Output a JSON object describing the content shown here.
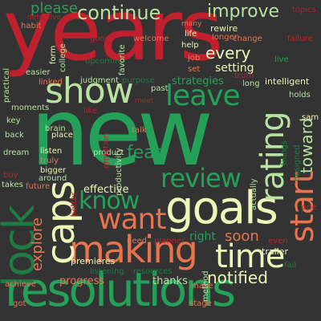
{
  "background": "#333333",
  "palette": {
    "red": "#c0202e",
    "green": "#25a059",
    "dark_green": "#1f7a43",
    "light_green": "#b7e2a0",
    "pale_yellow": "#eef6b8",
    "salmon": "#e8734f",
    "pink": "#f2a089"
  },
  "words": [
    {
      "text": "years",
      "color": "#c0202e",
      "orient": "h"
    },
    {
      "text": "new",
      "color": "#25a059",
      "orient": "h"
    },
    {
      "text": "resolutions",
      "color": "#25a059",
      "orient": "h"
    },
    {
      "text": "goals",
      "color": "#eef6b8",
      "orient": "h"
    },
    {
      "text": "making",
      "color": "#e8734f",
      "orient": "h"
    },
    {
      "text": "lock",
      "color": "#1f7a43",
      "orient": "v"
    },
    {
      "text": "caps",
      "color": "#eef6b8",
      "orient": "v"
    },
    {
      "text": "show",
      "color": "#b7e2a0",
      "orient": "h"
    },
    {
      "text": "leave",
      "color": "#25a059",
      "orient": "h"
    },
    {
      "text": "time",
      "color": "#eef6b8",
      "orient": "h"
    },
    {
      "text": "rating",
      "color": "#b7e2a0",
      "orient": "v"
    },
    {
      "text": "start",
      "color": "#e8734f",
      "orient": "v"
    },
    {
      "text": "want",
      "color": "#e8734f",
      "orient": "h"
    },
    {
      "text": "know",
      "color": "#25a059",
      "orient": "h"
    },
    {
      "text": "review",
      "color": "#25a059",
      "orient": "h"
    },
    {
      "text": "continue",
      "color": "#b7e2a0",
      "orient": "h"
    },
    {
      "text": "improve",
      "color": "#b7e2a0",
      "orient": "h"
    },
    {
      "text": "please",
      "color": "#25a059",
      "orient": "h"
    },
    {
      "text": "every",
      "color": "#eef6b8",
      "orient": "h"
    },
    {
      "text": "notified",
      "color": "#eef6b8",
      "orient": "h"
    },
    {
      "text": "fear",
      "color": "#25a059",
      "orient": "h"
    },
    {
      "text": "toward",
      "color": "#b7e2a0",
      "orient": "v"
    },
    {
      "text": "explore",
      "color": "#e8734f",
      "orient": "v"
    },
    {
      "text": "soon",
      "color": "#e8734f",
      "orient": "h"
    },
    {
      "text": "strategies",
      "color": "#25a059",
      "orient": "h"
    },
    {
      "text": "setting",
      "color": "#eef6b8",
      "orient": "h"
    },
    {
      "text": "effective",
      "color": "#eef6b8",
      "orient": "h"
    },
    {
      "text": "progress",
      "color": "#e8734f",
      "orient": "h"
    },
    {
      "text": "thanks",
      "color": "#b7e2a0",
      "orient": "h"
    },
    {
      "text": "right",
      "color": "#25a059",
      "orient": "h"
    },
    {
      "text": "premieres",
      "color": "#eef6b8",
      "orient": "h"
    },
    {
      "text": "intelligent",
      "color": "#eef6b8",
      "orient": "h"
    },
    {
      "text": "holds",
      "color": "#b7e2a0",
      "orient": "h"
    },
    {
      "text": "rewire",
      "color": "#eef6b8",
      "orient": "h"
    },
    {
      "text": "longer",
      "color": "#e8734f",
      "orient": "h"
    },
    {
      "text": "topics",
      "color": "#c0202e",
      "orient": "h"
    },
    {
      "text": "change",
      "color": "#e8734f",
      "orient": "h"
    },
    {
      "text": "failure",
      "color": "#c0202e",
      "orient": "h"
    },
    {
      "text": "live",
      "color": "#25a059",
      "orient": "h"
    },
    {
      "text": "welcome",
      "color": "#e8734f",
      "orient": "h"
    },
    {
      "text": "good",
      "color": "#c0202e",
      "orient": "h"
    },
    {
      "text": "upcoming",
      "color": "#1f7a43",
      "orient": "h"
    },
    {
      "text": "judgment",
      "color": "#b7e2a0",
      "orient": "h"
    },
    {
      "text": "purpose",
      "color": "#1f7a43",
      "orient": "h"
    },
    {
      "text": "past",
      "color": "#b7e2a0",
      "orient": "h"
    },
    {
      "text": "life",
      "color": "#eef6b8",
      "orient": "h"
    },
    {
      "text": "help",
      "color": "#eef6b8",
      "orient": "h"
    },
    {
      "text": "job",
      "color": "#e8734f",
      "orient": "h"
    },
    {
      "text": "set",
      "color": "#e8734f",
      "orient": "h"
    },
    {
      "text": "many",
      "color": "#e8734f",
      "orient": "h"
    },
    {
      "text": "truth",
      "color": "#c0202e",
      "orient": "h"
    },
    {
      "text": "long",
      "color": "#b7e2a0",
      "orient": "h"
    },
    {
      "text": "habit",
      "color": "#e8734f",
      "orient": "h"
    },
    {
      "text": "easier",
      "color": "#b7e2a0",
      "orient": "h"
    },
    {
      "text": "linked",
      "color": "#e8734f",
      "orient": "h"
    },
    {
      "text": "moments",
      "color": "#b7e2a0",
      "orient": "h"
    },
    {
      "text": "key",
      "color": "#b7e2a0",
      "orient": "h"
    },
    {
      "text": "back",
      "color": "#b7e2a0",
      "orient": "h"
    },
    {
      "text": "dream",
      "color": "#b7e2a0",
      "orient": "h"
    },
    {
      "text": "buy",
      "color": "#c0202e",
      "orient": "h"
    },
    {
      "text": "takes",
      "color": "#b7e2a0",
      "orient": "h"
    },
    {
      "text": "brain",
      "color": "#b7e2a0",
      "orient": "h"
    },
    {
      "text": "place",
      "color": "#eef6b8",
      "orient": "h"
    },
    {
      "text": "listen",
      "color": "#eef6b8",
      "orient": "h"
    },
    {
      "text": "bigger",
      "color": "#eef6b8",
      "orient": "h"
    },
    {
      "text": "around",
      "color": "#b7e2a0",
      "orient": "h"
    },
    {
      "text": "future",
      "color": "#e8734f",
      "orient": "h"
    },
    {
      "text": "truly",
      "color": "#e8734f",
      "orient": "h"
    },
    {
      "text": "product",
      "color": "#b7e2a0",
      "orient": "h"
    },
    {
      "text": "talk",
      "color": "#e8734f",
      "orient": "h"
    },
    {
      "text": "like",
      "color": "#c0202e",
      "orient": "h"
    },
    {
      "text": "need",
      "color": "#e8734f",
      "orient": "h"
    },
    {
      "text": "planner",
      "color": "#c0202e",
      "orient": "h"
    },
    {
      "text": "listening",
      "color": "#1f7a43",
      "orient": "h"
    },
    {
      "text": "resources",
      "color": "#1f7a43",
      "orient": "h"
    },
    {
      "text": "achieve",
      "color": "#e8734f",
      "orient": "h"
    },
    {
      "text": "got",
      "color": "#e8734f",
      "orient": "h"
    },
    {
      "text": "make",
      "color": "#e8734f",
      "orient": "h"
    },
    {
      "text": "stage",
      "color": "#e8734f",
      "orient": "h"
    },
    {
      "text": "trailer",
      "color": "#eef6b8",
      "orient": "h"
    },
    {
      "text": "even",
      "color": "#c0202e",
      "orient": "h"
    },
    {
      "text": "fail",
      "color": "#1f7a43",
      "orient": "h"
    },
    {
      "text": "sam",
      "color": "#eef6b8",
      "orient": "h"
    },
    {
      "text": "one",
      "color": "#c0202e",
      "orient": "h"
    },
    {
      "text": "meet",
      "color": "#c0202e",
      "orient": "h"
    },
    {
      "text": "designed",
      "color": "#1f7a43",
      "orient": "v"
    },
    {
      "text": "things",
      "color": "#1f7a43",
      "orient": "v"
    },
    {
      "text": "actually",
      "color": "#b7e2a0",
      "orient": "v"
    },
    {
      "text": "productivity",
      "color": "#b7e2a0",
      "orient": "v"
    },
    {
      "text": "ambition",
      "color": "#c0202e",
      "orient": "v"
    },
    {
      "text": "better",
      "color": "#c0202e",
      "orient": "v"
    },
    {
      "text": "method",
      "color": "#b7e2a0",
      "orient": "v"
    },
    {
      "text": "form",
      "color": "#eef6b8",
      "orient": "v"
    },
    {
      "text": "college",
      "color": "#b7e2a0",
      "orient": "v"
    },
    {
      "text": "favorite",
      "color": "#b7e2a0",
      "orient": "v"
    },
    {
      "text": "practical",
      "color": "#b7e2a0",
      "orient": "v"
    },
    {
      "text": "detective",
      "color": "#c0202e",
      "orient": "h"
    }
  ]
}
